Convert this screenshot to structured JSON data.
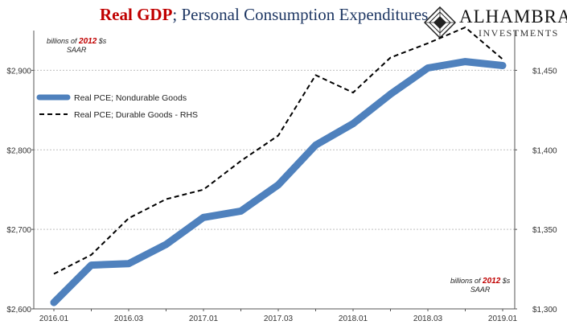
{
  "header": {
    "title_part1": "Real GDP",
    "title_sep": ";",
    "title_part2": " Personal Consumption Expenditures",
    "logo_name": "ALHAMBRA",
    "logo_sub": "INVESTMENTS"
  },
  "unit_notes": {
    "left": {
      "prefix": "billions of ",
      "year": "2012",
      "suffix": " $s",
      "line2": "SAAR"
    },
    "right": {
      "prefix": "billions of ",
      "year": "2012",
      "suffix": " $s",
      "line2": "SAAR"
    }
  },
  "colors": {
    "title_red": "#c00000",
    "title_blue": "#1f3864",
    "nondurable": "#4f81bd",
    "durable": "#000000",
    "grid": "#bfbfbf",
    "axis_text": "#333333"
  },
  "chart_data": {
    "type": "line",
    "x": [
      "2016.01",
      "2016.02",
      "2016.03",
      "2016.04",
      "2017.01",
      "2017.02",
      "2017.03",
      "2017.04",
      "2018.01",
      "2018.02",
      "2018.03",
      "2018.04",
      "2019.01"
    ],
    "xticks": [
      "2016.01",
      "2016.03",
      "2017.01",
      "2017.03",
      "2018.01",
      "2018.03",
      "2019.01"
    ],
    "left_axis": {
      "ylim": [
        2600,
        2950
      ],
      "ticks": [
        2600,
        2700,
        2800,
        2900
      ],
      "tick_labels": [
        "$2,600",
        "$2,700",
        "$2,800",
        "$2,900"
      ]
    },
    "right_axis": {
      "ylim": [
        1300,
        1475
      ],
      "ticks": [
        1300,
        1350,
        1400,
        1450
      ],
      "tick_labels": [
        "$1,300",
        "$1,350",
        "$1,400",
        "$1,450"
      ]
    },
    "grid": true,
    "legend_position": "top-left",
    "series": [
      {
        "name": "Real PCE; Nondurable Goods",
        "axis": "left",
        "style": "solid-thick",
        "values": [
          2608,
          2655,
          2657,
          2681,
          2715,
          2723,
          2756,
          2806,
          2833,
          2870,
          2903,
          2911,
          2906
        ]
      },
      {
        "name": "Real PCE; Durable Goods - RHS",
        "axis": "right",
        "style": "dashed",
        "values": [
          1322,
          1334,
          1357,
          1369,
          1375,
          1393,
          1409,
          1447,
          1436,
          1458,
          1467,
          1477,
          1457
        ]
      }
    ]
  }
}
